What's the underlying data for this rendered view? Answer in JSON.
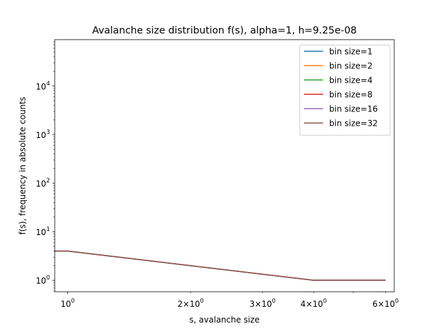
{
  "chart_data": {
    "type": "line",
    "title": "Avalanche size distribution f(s), alpha=1, h=9.25e-08",
    "xlabel": "s, avalanche size",
    "ylabel": "f(s), frequency in absolute counts",
    "xscale": "log",
    "yscale": "log",
    "xlim": [
      0.93,
      6.3
    ],
    "ylim": [
      0.58,
      90000
    ],
    "x_major_ticks": [
      {
        "value": 1,
        "base": "10",
        "exp": "0"
      }
    ],
    "x_minor_ticks": [
      {
        "value": 2,
        "mant": "2",
        "base": "10",
        "exp": "0"
      },
      {
        "value": 3,
        "mant": "3",
        "base": "10",
        "exp": "0"
      },
      {
        "value": 4,
        "mant": "4",
        "base": "10",
        "exp": "0"
      },
      {
        "value": 5,
        "mant": "",
        "base": "",
        "exp": ""
      },
      {
        "value": 6,
        "mant": "6",
        "base": "10",
        "exp": "0"
      }
    ],
    "y_major_ticks": [
      {
        "value": 1,
        "base": "10",
        "exp": "0"
      },
      {
        "value": 10,
        "base": "10",
        "exp": "1"
      },
      {
        "value": 100,
        "base": "10",
        "exp": "2"
      },
      {
        "value": 1000,
        "base": "10",
        "exp": "3"
      },
      {
        "value": 10000,
        "base": "10",
        "exp": "4"
      }
    ],
    "grid": false,
    "legend_position": "top-right",
    "series": [
      {
        "name": "bin size=1",
        "color": "#1f77b4",
        "x": [
          0.93,
          1,
          4,
          6
        ],
        "y": [
          4,
          4,
          1,
          1
        ]
      },
      {
        "name": "bin size=2",
        "color": "#ff7f0e",
        "x": [
          0.93,
          1,
          4,
          6
        ],
        "y": [
          4,
          4,
          1,
          1
        ]
      },
      {
        "name": "bin size=4",
        "color": "#2ca02c",
        "x": [
          0.93,
          1,
          4,
          6
        ],
        "y": [
          4,
          4,
          1,
          1
        ]
      },
      {
        "name": "bin size=8",
        "color": "#d62728",
        "x": [
          0.93,
          1,
          4,
          6
        ],
        "y": [
          4,
          4,
          1,
          1
        ]
      },
      {
        "name": "bin size=16",
        "color": "#9467bd",
        "x": [
          0.93,
          1,
          4,
          6
        ],
        "y": [
          4,
          4,
          1,
          1
        ]
      },
      {
        "name": "bin size=32",
        "color": "#8c564b",
        "x": [
          0.93,
          1,
          4,
          6
        ],
        "y": [
          4,
          4,
          1,
          1
        ]
      }
    ]
  }
}
